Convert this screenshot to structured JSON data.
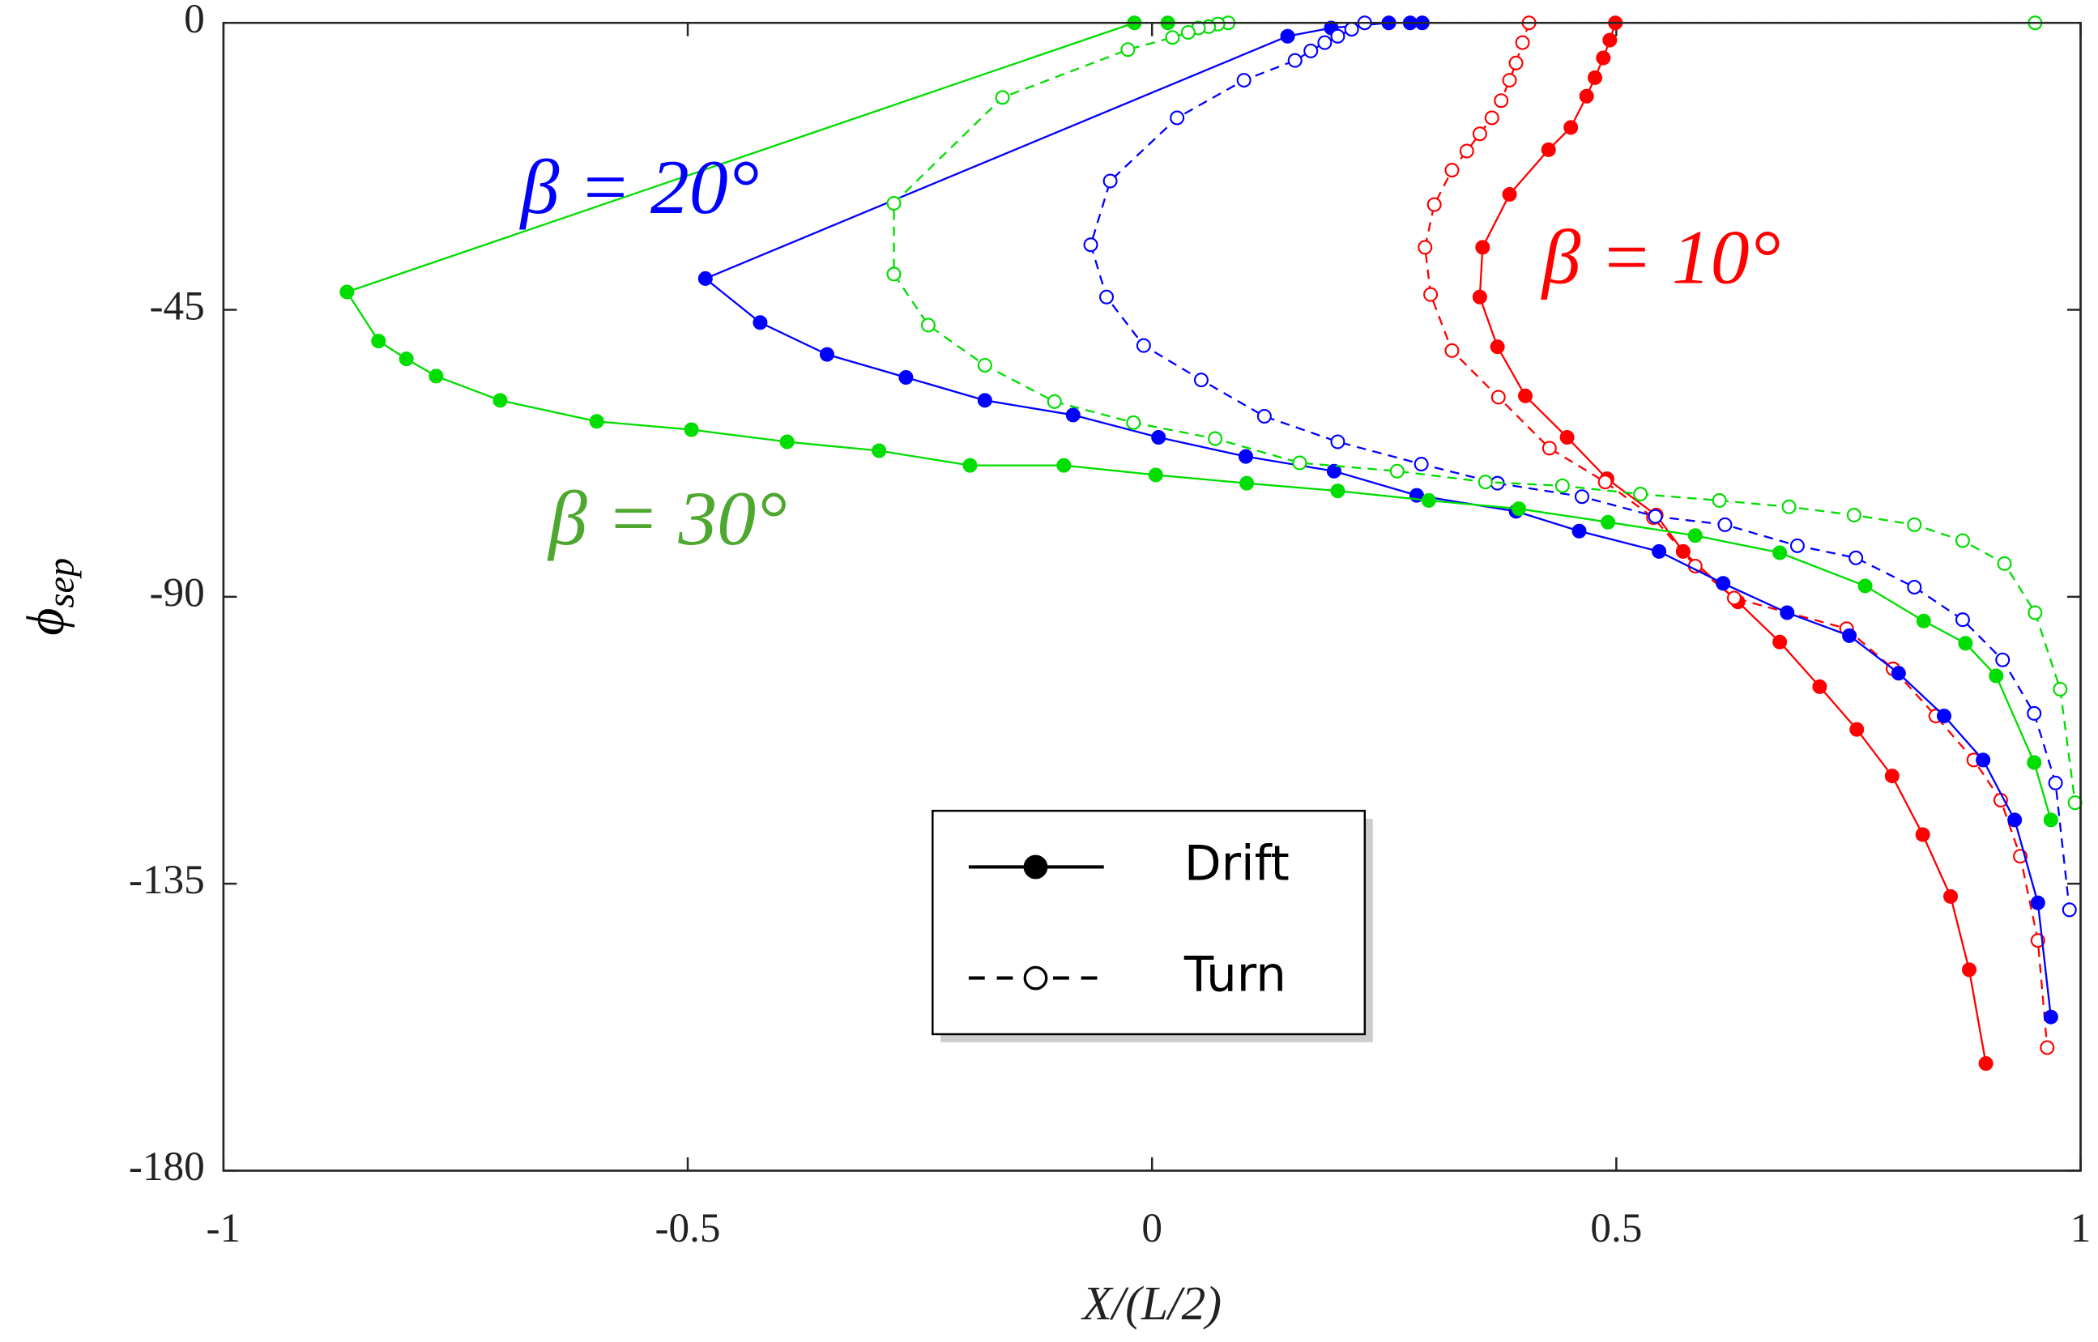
{
  "chart_data": {
    "type": "line",
    "x_label": "X/(L/2)",
    "y_label": "ϕ",
    "y_label_sub": "sep",
    "xlim": [
      -1,
      1
    ],
    "xticks": [
      -1,
      -0.5,
      0,
      0.5,
      1
    ],
    "ylim": [
      -180,
      0
    ],
    "yticks": [
      0,
      -45,
      -90,
      -135,
      -180
    ],
    "annotations": [
      {
        "text": "β = 20°",
        "color": "#0000ff",
        "x": -0.68,
        "y": -27
      },
      {
        "text": "β = 10°",
        "color": "#ff0000",
        "x": 0.42,
        "y": -38
      },
      {
        "text": "β = 30°",
        "color": "#4ea72e",
        "x": -0.65,
        "y": -79
      }
    ],
    "legend": [
      {
        "label": "Drift",
        "line_style": "solid",
        "marker": "filled"
      },
      {
        "label": "Turn",
        "line_style": "dashed",
        "marker": "open"
      }
    ],
    "series": [
      {
        "color": "#ff0000",
        "line_style": "solid",
        "marker": "filled",
        "x": [
          0.499,
          0.493,
          0.486,
          0.477,
          0.468,
          0.451,
          0.427,
          0.385,
          0.356,
          0.353,
          0.372,
          0.402,
          0.447,
          0.49,
          0.543,
          0.572,
          0.631,
          0.676,
          0.719,
          0.759,
          0.797,
          0.83,
          0.86,
          0.88,
          0.898
        ],
        "values": [
          0,
          -2.7,
          -5.5,
          -8.6,
          -11.5,
          -16.4,
          -19.9,
          -26.9,
          -35.2,
          -43.0,
          -50.8,
          -58.5,
          -65.0,
          -71.5,
          -77.2,
          -82.9,
          -90.8,
          -97.1,
          -104.1,
          -110.8,
          -118.1,
          -127.3,
          -137.0,
          -148.5,
          -163.2
        ]
      },
      {
        "color": "#ff0000",
        "line_style": "dashed",
        "marker": "open",
        "x": [
          0.406,
          0.399,
          0.392,
          0.385,
          0.376,
          0.366,
          0.353,
          0.339,
          0.323,
          0.304,
          0.294,
          0.3,
          0.323,
          0.373,
          0.428,
          0.488,
          0.54,
          0.585,
          0.627,
          0.748,
          0.798,
          0.844,
          0.885,
          0.914,
          0.935,
          0.954,
          0.964
        ],
        "values": [
          0,
          -3.1,
          -6.3,
          -9.0,
          -12.2,
          -14.9,
          -17.4,
          -20.1,
          -23.1,
          -28.5,
          -35.2,
          -42.6,
          -51.4,
          -58.7,
          -66.7,
          -72.0,
          -77.6,
          -85.2,
          -90.2,
          -95.0,
          -101.3,
          -108.7,
          -115.6,
          -121.9,
          -130.7,
          -143.9,
          -160.7
        ]
      },
      {
        "color": "#0000ff",
        "line_style": "solid",
        "marker": "filled",
        "x": [
          0.291,
          0.278,
          0.255,
          0.193,
          0.146,
          -0.481,
          -0.422,
          -0.35,
          -0.265,
          -0.18,
          -0.085,
          0.007,
          0.101,
          0.196,
          0.285,
          0.392,
          0.46,
          0.546,
          0.615,
          0.684,
          0.751,
          0.804,
          0.853,
          0.895,
          0.929,
          0.954,
          0.968
        ],
        "values": [
          0,
          0,
          0,
          -0.8,
          -2.1,
          -40.1,
          -47.0,
          -52.0,
          -55.6,
          -59.2,
          -61.5,
          -65.0,
          -68.0,
          -70.3,
          -74.1,
          -76.6,
          -79.7,
          -82.9,
          -87.9,
          -92.5,
          -96.1,
          -102.0,
          -108.7,
          -115.6,
          -125.0,
          -138.0,
          -155.9
        ]
      },
      {
        "color": "#0000ff",
        "line_style": "dashed",
        "marker": "open",
        "x": [
          0.229,
          0.215,
          0.2,
          0.186,
          0.171,
          0.154,
          0.099,
          0.027,
          -0.045,
          -0.066,
          -0.049,
          -0.009,
          0.053,
          0.121,
          0.2,
          0.29,
          0.372,
          0.463,
          0.542,
          0.617,
          0.695,
          0.758,
          0.821,
          0.873,
          0.916,
          0.95,
          0.973,
          0.988
        ],
        "values": [
          0,
          -1.0,
          -2.1,
          -3.1,
          -4.4,
          -5.9,
          -9.0,
          -14.9,
          -24.8,
          -34.8,
          -43.0,
          -50.6,
          -56.0,
          -61.7,
          -65.7,
          -69.2,
          -72.2,
          -74.3,
          -77.4,
          -78.7,
          -82.0,
          -83.9,
          -88.5,
          -93.6,
          -99.9,
          -108.3,
          -119.2,
          -139.1
        ]
      },
      {
        "color": "#00dd00",
        "line_style": "solid",
        "marker": "filled",
        "x": [
          0.017,
          -0.019,
          -0.867,
          -0.833,
          -0.803,
          -0.771,
          -0.702,
          -0.598,
          -0.496,
          -0.393,
          -0.294,
          -0.196,
          -0.095,
          0.004,
          0.102,
          0.2,
          0.298,
          0.395,
          0.491,
          0.585,
          0.676,
          0.768,
          0.831,
          0.876,
          0.909,
          0.95,
          0.968
        ],
        "values": [
          0,
          0,
          -42.2,
          -49.9,
          -52.7,
          -55.4,
          -59.2,
          -62.5,
          -63.8,
          -65.7,
          -67.1,
          -69.4,
          -69.4,
          -70.9,
          -72.2,
          -73.4,
          -74.9,
          -76.2,
          -78.3,
          -80.4,
          -83.1,
          -88.3,
          -93.8,
          -97.3,
          -102.4,
          -116.0,
          -125.0
        ]
      },
      {
        "color": "#00dd00",
        "line_style": "dashed",
        "marker": "open",
        "x": [
          0.951,
          0.082,
          0.071,
          0.061,
          0.05,
          0.039,
          0.022,
          -0.026,
          -0.161,
          -0.278,
          -0.278,
          -0.241,
          -0.18,
          -0.105,
          -0.02,
          0.068,
          0.159,
          0.264,
          0.359,
          0.442,
          0.526,
          0.611,
          0.686,
          0.756,
          0.821,
          0.873,
          0.918,
          0.951,
          0.978,
          0.994
        ],
        "values": [
          0,
          0,
          -0.2,
          -0.6,
          -0.8,
          -1.5,
          -2.3,
          -4.2,
          -11.7,
          -28.3,
          -39.4,
          -47.4,
          -53.7,
          -59.4,
          -62.7,
          -65.2,
          -69.0,
          -70.3,
          -72.0,
          -72.6,
          -73.9,
          -74.9,
          -75.9,
          -77.2,
          -78.7,
          -81.2,
          -84.8,
          -92.5,
          -104.5,
          -122.3
        ]
      }
    ]
  }
}
